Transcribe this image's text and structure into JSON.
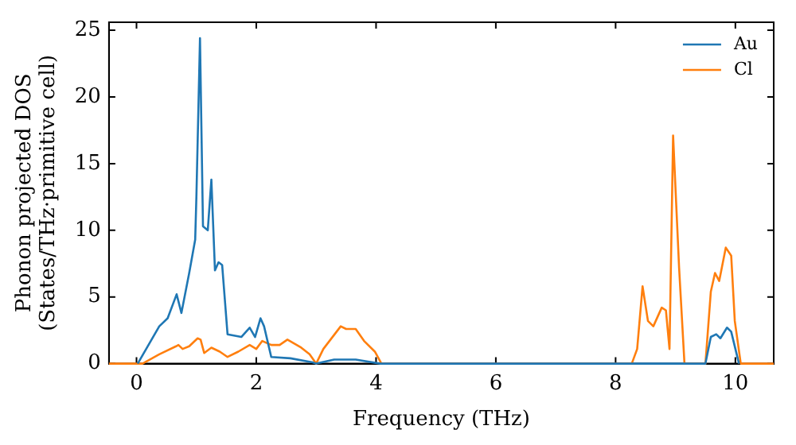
{
  "chart_data": {
    "type": "line",
    "xlabel": "Frequency (THz)",
    "ylabel": "Phonon projected DOS\n(States/THz·primitive cell)",
    "xlim": [
      -0.46,
      10.64
    ],
    "ylim": [
      0,
      25.6
    ],
    "xticks": [
      0,
      2,
      4,
      6,
      8,
      10
    ],
    "yticks": [
      0,
      5,
      10,
      15,
      20,
      25
    ],
    "grid": false,
    "legend": "top right",
    "marker": "none",
    "line_style": "solid",
    "series": [
      {
        "name": "Au",
        "color": "#1f77b4",
        "x": [
          0.02,
          0.38,
          0.52,
          0.67,
          0.75,
          0.88,
          0.98,
          1.0,
          1.06,
          1.11,
          1.19,
          1.25,
          1.31,
          1.37,
          1.43,
          1.52,
          1.75,
          1.89,
          1.98,
          2.07,
          2.13,
          2.25,
          2.57,
          2.94,
          3.0,
          3.3,
          3.66,
          4.07,
          9.5,
          9.59,
          9.68,
          9.75,
          9.86,
          9.93,
          10.06
        ],
        "values": [
          0,
          2.8,
          3.4,
          5.2,
          3.8,
          6.8,
          9.3,
          12.5,
          24.4,
          10.3,
          10.0,
          13.8,
          7.0,
          7.6,
          7.4,
          2.2,
          2.0,
          2.7,
          2.0,
          3.4,
          2.8,
          0.5,
          0.4,
          0.1,
          0,
          0.3,
          0.3,
          0,
          0,
          2.0,
          2.2,
          1.9,
          2.7,
          2.4,
          0
        ]
      },
      {
        "name": "Cl",
        "color": "#ff7f0e",
        "x": [
          -0.46,
          0.1,
          0.38,
          0.66,
          0.7,
          0.77,
          0.88,
          1.02,
          1.07,
          1.13,
          1.25,
          1.39,
          1.52,
          1.7,
          1.89,
          2.0,
          2.1,
          2.25,
          2.39,
          2.52,
          2.75,
          2.89,
          3.0,
          3.12,
          3.41,
          3.5,
          3.66,
          3.8,
          3.98,
          4.09,
          8.27,
          8.36,
          8.45,
          8.54,
          8.63,
          8.77,
          8.84,
          8.9,
          8.96,
          9.06,
          9.15,
          9.5,
          9.59,
          9.66,
          9.73,
          9.84,
          9.93,
          9.99,
          10.09,
          10.64
        ],
        "values": [
          0,
          0,
          0.7,
          1.3,
          1.4,
          1.1,
          1.3,
          1.9,
          1.8,
          0.8,
          1.2,
          0.9,
          0.5,
          0.9,
          1.4,
          1.1,
          1.7,
          1.4,
          1.4,
          1.8,
          1.2,
          0.7,
          0,
          1.1,
          2.8,
          2.6,
          2.6,
          1.7,
          0.9,
          0,
          0,
          1.1,
          5.8,
          3.2,
          2.8,
          4.2,
          4.0,
          1.1,
          17.1,
          7.2,
          0,
          0,
          5.4,
          6.8,
          6.2,
          8.7,
          8.1,
          3.2,
          0,
          0
        ]
      }
    ]
  }
}
